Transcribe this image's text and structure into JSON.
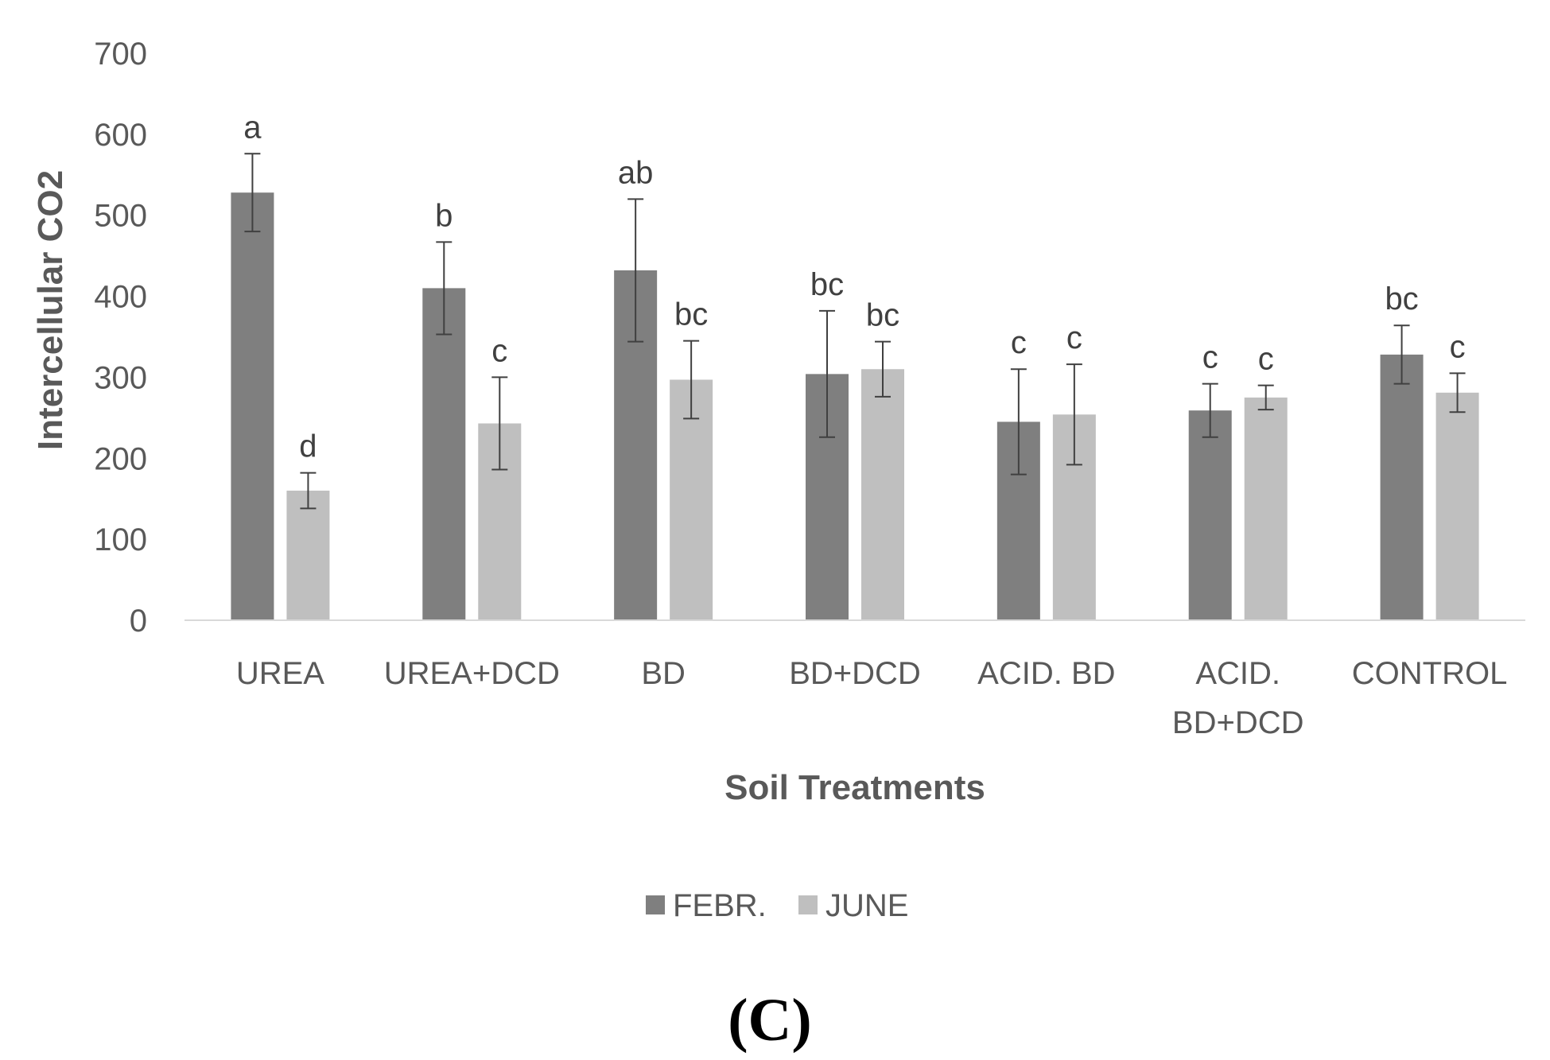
{
  "chart_data": {
    "type": "bar",
    "title": "",
    "xlabel": "Soil Treatments",
    "ylabel": "Intercellular CO2",
    "ylim": [
      0,
      700
    ],
    "yticks": [
      0,
      100,
      200,
      300,
      400,
      500,
      600,
      700
    ],
    "grid": false,
    "legend_position": "bottom-center",
    "panel_label": "(C)",
    "categories": [
      [
        "UREA"
      ],
      [
        "UREA+DCD"
      ],
      [
        "BD"
      ],
      [
        "BD+DCD"
      ],
      [
        "ACID. BD"
      ],
      [
        "ACID.",
        "BD+DCD"
      ],
      [
        "CONTROL"
      ]
    ],
    "series": [
      {
        "name": "FEBR.",
        "color": "#7f7f7f",
        "values": [
          528,
          410,
          432,
          304,
          245,
          259,
          328
        ],
        "errors": [
          48,
          57,
          88,
          78,
          65,
          33,
          36
        ],
        "letters": [
          "a",
          "b",
          "ab",
          "bc",
          "c",
          "c",
          "bc"
        ]
      },
      {
        "name": "JUNE",
        "color": "#bfbfbf",
        "values": [
          160,
          243,
          297,
          310,
          254,
          275,
          281
        ],
        "errors": [
          22,
          57,
          48,
          34,
          62,
          15,
          24
        ],
        "letters": [
          "d",
          "c",
          "bc",
          "bc",
          "c",
          "c",
          "c"
        ]
      }
    ]
  }
}
